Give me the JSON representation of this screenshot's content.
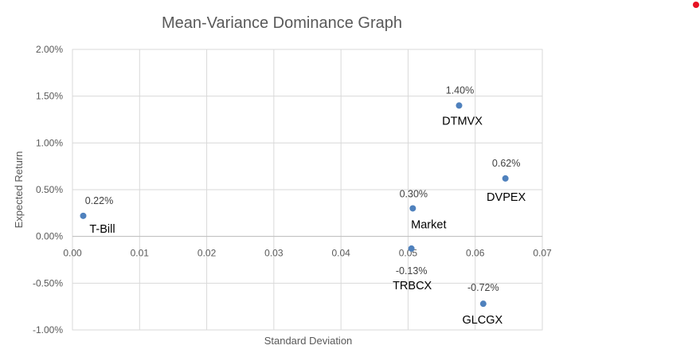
{
  "marker_color": "#e81123",
  "chart_data": {
    "type": "scatter",
    "title": "Mean-Variance Dominance Graph",
    "xlabel": "Standard Deviation",
    "ylabel": "Expected Return",
    "xlim": [
      0,
      0.07
    ],
    "ylim": [
      -1.0,
      2.0
    ],
    "y_unit": "%",
    "x_ticks": [
      "0.00",
      "0.01",
      "0.02",
      "0.03",
      "0.04",
      "0.05",
      "0.06",
      "0.07"
    ],
    "y_ticks": [
      "-1.00%",
      "-0.50%",
      "0.00%",
      "0.50%",
      "1.00%",
      "1.50%",
      "2.00%"
    ],
    "grid": true,
    "legend": "none",
    "point_color": "#4f81bd",
    "points": [
      {
        "name": "T-Bill",
        "x": 0.0016,
        "y": 0.22,
        "value_label": "0.22%"
      },
      {
        "name": "Market",
        "x": 0.0507,
        "y": 0.3,
        "value_label": "0.30%"
      },
      {
        "name": "TRBCX",
        "x": 0.0505,
        "y": -0.13,
        "value_label": "-0.13%"
      },
      {
        "name": "DTMVX",
        "x": 0.0576,
        "y": 1.4,
        "value_label": "1.40%"
      },
      {
        "name": "DVPEX",
        "x": 0.0645,
        "y": 0.62,
        "value_label": "0.62%"
      },
      {
        "name": "GLCGX",
        "x": 0.0612,
        "y": -0.72,
        "value_label": "-0.72%"
      }
    ]
  }
}
